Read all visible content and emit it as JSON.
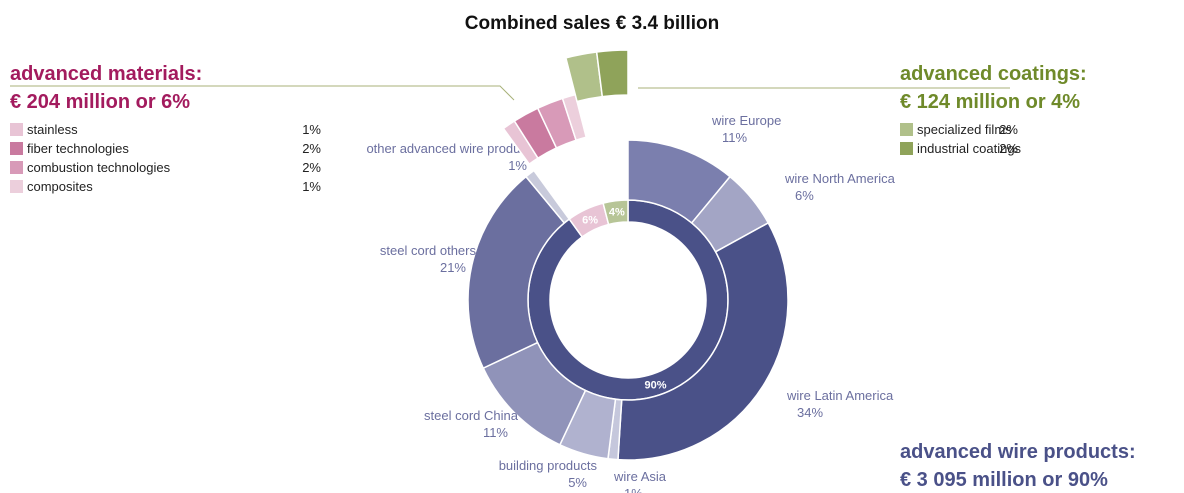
{
  "chart_data": {
    "type": "donut",
    "title": "Combined sales € 3.4 billion",
    "groups": [
      {
        "name": "advanced wire products:",
        "amount": "€ 3 095 million or 90%",
        "value": 90,
        "value_label": "90%",
        "color": "#4a5188",
        "items": [
          {
            "name": "wire Europe",
            "value": 11,
            "value_label": "11%",
            "color": "#7b7fae"
          },
          {
            "name": "wire North America",
            "value": 6,
            "value_label": "6%",
            "color": "#a3a5c5"
          },
          {
            "name": "wire Latin America",
            "value": 34,
            "value_label": "34%",
            "color": "#4a5188"
          },
          {
            "name": "wire Asia",
            "value": 1,
            "value_label": "1%",
            "color": "#c5c7dc"
          },
          {
            "name": "building products",
            "value": 5,
            "value_label": "5%",
            "color": "#b0b2cf"
          },
          {
            "name": "steel cord China",
            "value": 11,
            "value_label": "11%",
            "color": "#9093b9"
          },
          {
            "name": "steel cord others",
            "value": 21,
            "value_label": "21%",
            "color": "#6b6f9f"
          },
          {
            "name": "other advanced wire products",
            "value": 1,
            "value_label": "1%",
            "color": "#c8cadb"
          }
        ]
      },
      {
        "name": "advanced materials:",
        "amount": "€ 204 million or 6%",
        "value": 6,
        "value_label": "6%",
        "color": "#e8c4d5",
        "items": [
          {
            "name": "stainless",
            "value": 1,
            "value_label": "1%",
            "color": "#e8c4d5"
          },
          {
            "name": "fiber technologies",
            "value": 2,
            "value_label": "2%",
            "color": "#c97a9f"
          },
          {
            "name": "combustion technologies",
            "value": 2,
            "value_label": "2%",
            "color": "#d89ab8"
          },
          {
            "name": "composites",
            "value": 1,
            "value_label": "1%",
            "color": "#eccfdc"
          }
        ]
      },
      {
        "name": "advanced coatings:",
        "amount": "€ 124 million or 4%",
        "value": 4,
        "value_label": "4%",
        "color": "#b7c597",
        "items": [
          {
            "name": "specialized films",
            "value": 2,
            "value_label": "2%",
            "color": "#b0c08a"
          },
          {
            "name": "industrial coatings",
            "value": 2,
            "value_label": "2%",
            "color": "#8fa35a"
          }
        ]
      }
    ]
  }
}
